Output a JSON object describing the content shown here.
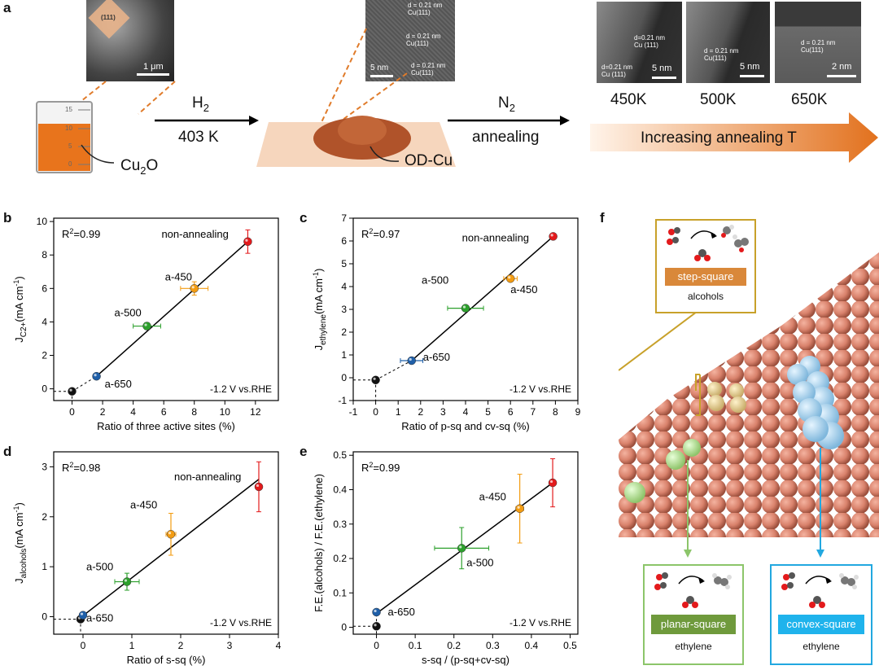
{
  "panel_labels": {
    "a": "a",
    "b": "b",
    "c": "c",
    "d": "d",
    "e": "e",
    "f": "f"
  },
  "panel_a": {
    "sem_facet": "(111)",
    "sem_scale": "1 μm",
    "tem_labels": [
      "d = 0.21 nm\nCu(111)",
      "d = 0.21 nm\nCu(111)",
      "d = 0.21 nm\nCu(111)"
    ],
    "tem_scale": "5 nm",
    "beaker_ticks": [
      "15",
      "10",
      "5",
      "0"
    ],
    "precursor": "Cu",
    "precursor_sub": "2",
    "precursor_tail": "O",
    "step1_gas": "H",
    "step1_gas_sub": "2",
    "step1_temp": "403 K",
    "product": "OD-Cu",
    "step2_gas": "N",
    "step2_gas_sub": "2",
    "step2_label": "annealing",
    "hrtem": [
      {
        "temp": "450K",
        "lines": [
          "d=0.21 nm\nCu (111)",
          "d=0.21 nm\nCu (111)"
        ],
        "scale": "5 nm"
      },
      {
        "temp": "500K",
        "lines": [
          "d = 0.21 nm\nCu(111)"
        ],
        "scale": "5 nm"
      },
      {
        "temp": "650K",
        "lines": [
          "d = 0.21 nm\nCu(111)"
        ],
        "scale": "2 nm"
      }
    ],
    "arrow_text": "Increasing annealing T"
  },
  "chart_data": [
    {
      "panel": "b",
      "type": "scatter",
      "xlabel": "Ratio of three active sites (%)",
      "ylabel_main": "J",
      "ylabel_sub": "C2+",
      "ylabel_unit": "(mA cm",
      "ylabel_sup": "-1",
      "ylabel_end": ")",
      "xlim": [
        -1.2,
        13.5
      ],
      "ylim": [
        -0.7,
        10.2
      ],
      "xticks": [
        0,
        2,
        4,
        6,
        8,
        10,
        12
      ],
      "yticks": [
        0,
        2,
        4,
        6,
        8,
        10
      ],
      "r2": "R",
      "r2_sup": "2",
      "r2_val": "=0.99",
      "condition": "-1.2 V vs.RHE",
      "fit": [
        [
          1.6,
          0.75
        ],
        [
          11.5,
          8.8
        ]
      ],
      "points": [
        {
          "label": "",
          "x": 0,
          "y": -0.15,
          "xerr": 0,
          "yerr": 0,
          "color": "#111111"
        },
        {
          "label": "a-650",
          "x": 1.6,
          "y": 0.75,
          "xerr": 0.2,
          "yerr": 0.1,
          "color": "#1f5fa8"
        },
        {
          "label": "a-500",
          "x": 4.9,
          "y": 3.75,
          "xerr": 0.9,
          "yerr": 0.2,
          "color": "#2ca02c"
        },
        {
          "label": "a-450",
          "x": 8.0,
          "y": 6.0,
          "xerr": 0.9,
          "yerr": 0.4,
          "color": "#f39c12"
        },
        {
          "label": "non-annealing",
          "x": 11.5,
          "y": 8.8,
          "xerr": 0.2,
          "yerr": 0.7,
          "color": "#e31a1c"
        }
      ]
    },
    {
      "panel": "c",
      "type": "scatter",
      "xlabel": "Ratio of p-sq and cv-sq (%)",
      "ylabel_main": "J",
      "ylabel_sub": "ethylene",
      "ylabel_unit": "(mA cm",
      "ylabel_sup": "-1",
      "ylabel_end": ")",
      "xlim": [
        -1,
        9
      ],
      "ylim": [
        -1,
        7
      ],
      "xticks": [
        -1,
        0,
        1,
        2,
        3,
        4,
        5,
        6,
        7,
        8,
        9
      ],
      "yticks": [
        -1,
        0,
        1,
        2,
        3,
        4,
        5,
        6,
        7
      ],
      "r2": "R",
      "r2_sup": "2",
      "r2_val": "=0.97",
      "condition": "-1.2 V vs.RHE",
      "fit": [
        [
          1.6,
          0.75
        ],
        [
          7.9,
          6.2
        ]
      ],
      "points": [
        {
          "label": "",
          "x": 0,
          "y": -0.1,
          "xerr": 0,
          "yerr": 0,
          "color": "#111111"
        },
        {
          "label": "a-650",
          "x": 1.6,
          "y": 0.75,
          "xerr": 0.5,
          "yerr": 0.1,
          "color": "#1f5fa8"
        },
        {
          "label": "a-500",
          "x": 4.0,
          "y": 3.05,
          "xerr": 0.8,
          "yerr": 0.1,
          "color": "#2ca02c"
        },
        {
          "label": "a-450",
          "x": 6.0,
          "y": 4.35,
          "xerr": 0.3,
          "yerr": 0.1,
          "color": "#f39c12"
        },
        {
          "label": "non-annealing",
          "x": 7.9,
          "y": 6.2,
          "xerr": 0.1,
          "yerr": 0.1,
          "color": "#e31a1c"
        }
      ]
    },
    {
      "panel": "d",
      "type": "scatter",
      "xlabel": "Ratio of s-sq (%)",
      "ylabel_main": "J",
      "ylabel_sub": "alcohols",
      "ylabel_unit": "(mA cm",
      "ylabel_sup": "-1",
      "ylabel_end": ")",
      "xlim": [
        -0.6,
        4
      ],
      "ylim": [
        -0.35,
        3.3
      ],
      "xticks": [
        0,
        1,
        2,
        3,
        4
      ],
      "yticks": [
        0,
        1,
        2,
        3
      ],
      "r2": "R",
      "r2_sup": "2",
      "r2_val": "=0.98",
      "condition": "-1.2 V vs.RHE",
      "fit": [
        [
          0,
          0.02
        ],
        [
          3.6,
          2.75
        ]
      ],
      "points": [
        {
          "label": "",
          "x": -0.05,
          "y": -0.05,
          "xerr": 0,
          "yerr": 0,
          "color": "#111111"
        },
        {
          "label": "a-650",
          "x": 0,
          "y": 0.03,
          "xerr": 0,
          "yerr": 0,
          "color": "#1f5fa8"
        },
        {
          "label": "a-500",
          "x": 0.9,
          "y": 0.7,
          "xerr": 0.25,
          "yerr": 0.17,
          "color": "#2ca02c"
        },
        {
          "label": "a-450",
          "x": 1.8,
          "y": 1.65,
          "xerr": 0.1,
          "yerr": 0.42,
          "color": "#f39c12"
        },
        {
          "label": "non-annealing",
          "x": 3.6,
          "y": 2.6,
          "xerr": 0.05,
          "yerr": 0.5,
          "color": "#e31a1c"
        }
      ]
    },
    {
      "panel": "e",
      "type": "scatter",
      "xlabel": "s-sq / (p-sq+cv-sq)",
      "ylabel_main": "F.E.(alcohols) / F.E.(ethylene)",
      "ylabel_sub": "",
      "ylabel_unit": "",
      "ylabel_sup": "",
      "ylabel_end": "",
      "xlim": [
        -0.06,
        0.52
      ],
      "ylim": [
        -0.02,
        0.51
      ],
      "xticks": [
        0,
        0.1,
        0.2,
        0.3,
        0.4,
        0.5
      ],
      "yticks": [
        0,
        0.1,
        0.2,
        0.3,
        0.4,
        0.5
      ],
      "r2": "R",
      "r2_sup": "2",
      "r2_val": "=0.99",
      "condition": "-1.2 V vs.RHE",
      "fit": [
        [
          0,
          0.04
        ],
        [
          0.455,
          0.42
        ]
      ],
      "points": [
        {
          "label": "",
          "x": 0,
          "y": 0.003,
          "xerr": 0,
          "yerr": 0,
          "color": "#111111"
        },
        {
          "label": "a-650",
          "x": 0,
          "y": 0.044,
          "xerr": 0,
          "yerr": 0,
          "color": "#1f5fa8"
        },
        {
          "label": "a-500",
          "x": 0.22,
          "y": 0.23,
          "xerr": 0.07,
          "yerr": 0.06,
          "color": "#2ca02c"
        },
        {
          "label": "a-450",
          "x": 0.37,
          "y": 0.345,
          "xerr": 0.01,
          "yerr": 0.1,
          "color": "#f39c12"
        },
        {
          "label": "non-annealing",
          "x": 0.455,
          "y": 0.42,
          "xerr": 0.005,
          "yerr": 0.07,
          "color": "#e31a1c"
        }
      ]
    }
  ],
  "panel_f": {
    "step_box": {
      "site": "step-square",
      "product": "alcohols",
      "color": "#c8a12a",
      "site_color": "#d9883a"
    },
    "planar_box": {
      "site": "planar-square",
      "product": "ethylene",
      "color": "#8cc56a",
      "site_color": "#6f9a3c"
    },
    "convex_box": {
      "site": "convex-square",
      "product": "ethylene",
      "color": "#22a8e0",
      "site_color": "#1fb3ec"
    }
  }
}
